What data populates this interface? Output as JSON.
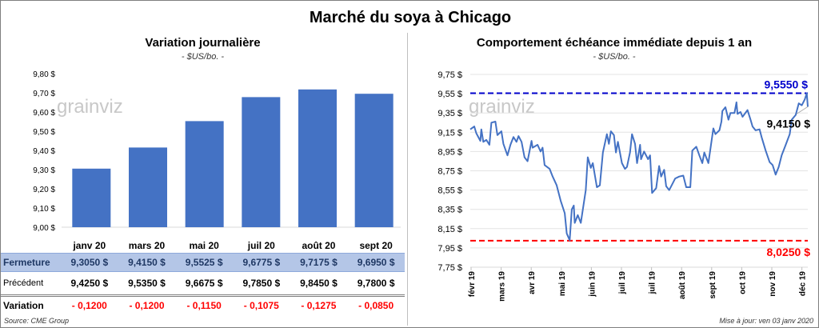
{
  "title": "Marché du soya à Chicago",
  "logo_text": "grainviz",
  "left": {
    "subtitle": "Variation journalière",
    "unit": "- $US/bo. -"
  },
  "right": {
    "subtitle": "Comportement  échéance immédiate depuis 1 an",
    "unit": "- $US/bo. -"
  },
  "table": {
    "columns": [
      "janv 20",
      "mars 20",
      "mai 20",
      "juil 20",
      "août 20",
      "sept 20"
    ],
    "rows": [
      {
        "label": "Fermeture",
        "values": [
          "9,3050  $",
          "9,4150  $",
          "9,5525  $",
          "9,6775  $",
          "9,7175  $",
          "9,6950  $"
        ]
      },
      {
        "label": "Précédent",
        "values": [
          "9,4250  $",
          "9,5350  $",
          "9,6675  $",
          "9,7850  $",
          "9,8450  $",
          "9,7800  $"
        ]
      },
      {
        "label": "Variation",
        "values": [
          "- 0,1200",
          "- 0,1200",
          "- 0,1150",
          "- 0,1075",
          "- 0,1275",
          "- 0,0850"
        ]
      }
    ]
  },
  "source": "Source: CME Group",
  "updated": "Mise à jour: ven 03 janv 2020",
  "colors": {
    "bar": "#4472c4",
    "line": "#4472c4",
    "high": "#0000cc",
    "low": "#ff0000",
    "table_highlight": "#b4c6e7",
    "variation": "#ff0000"
  },
  "chart_data": [
    {
      "type": "bar",
      "title": "Variation journalière",
      "ylabel": "- $US/bo. -",
      "categories": [
        "janv 20",
        "mars 20",
        "mai 20",
        "juil 20",
        "août 20",
        "sept 20"
      ],
      "values": [
        9.305,
        9.415,
        9.5525,
        9.6775,
        9.7175,
        9.695
      ],
      "ylim": [
        9.0,
        9.8
      ],
      "yticks": [
        "9,00 $",
        "9,10 $",
        "9,20 $",
        "9,30 $",
        "9,40 $",
        "9,50 $",
        "9,60 $",
        "9,70 $",
        "9,80 $"
      ],
      "grid": false
    },
    {
      "type": "line",
      "title": "Comportement  échéance immédiate depuis 1 an",
      "ylabel": "- $US/bo. -",
      "ylim": [
        7.75,
        9.75
      ],
      "yticks": [
        "7,75 $",
        "7,95 $",
        "8,15 $",
        "8,35 $",
        "8,55 $",
        "8,75 $",
        "8,95 $",
        "9,15 $",
        "9,35 $",
        "9,55 $",
        "9,75 $"
      ],
      "xticks": [
        "févr 19",
        "mars 19",
        "avr 19",
        "mai 19",
        "juin 19",
        "juil 19",
        "juil 19",
        "août 19",
        "sept 19",
        "oct 19",
        "nov 19",
        "déc 19"
      ],
      "grid": true,
      "high": {
        "value": 9.555,
        "label": "9,5550 $"
      },
      "low": {
        "value": 8.025,
        "label": "8,0250 $"
      },
      "last": {
        "value": 9.415,
        "label": "9,4150 $"
      },
      "series": [
        {
          "x": [
            "2019-02-01",
            "2019-02-05",
            "2019-02-07",
            "2019-02-11",
            "2019-02-12",
            "2019-02-14",
            "2019-02-17",
            "2019-02-20",
            "2019-02-22",
            "2019-02-26",
            "2019-02-28",
            "2019-03-04",
            "2019-03-06",
            "2019-03-10",
            "2019-03-13",
            "2019-03-16",
            "2019-03-19",
            "2019-03-21",
            "2019-03-24",
            "2019-03-27",
            "2019-03-30",
            "2019-04-03",
            "2019-04-04",
            "2019-04-09",
            "2019-04-12",
            "2019-04-14",
            "2019-04-16",
            "2019-04-21",
            "2019-04-24",
            "2019-04-28",
            "2019-05-02",
            "2019-05-06",
            "2019-05-08",
            "2019-05-11",
            "2019-05-13",
            "2019-05-15",
            "2019-05-16",
            "2019-05-19",
            "2019-05-22",
            "2019-05-27",
            "2019-05-29",
            "2019-06-01",
            "2019-06-03",
            "2019-06-07",
            "2019-06-10",
            "2019-06-13",
            "2019-06-17",
            "2019-06-19",
            "2019-06-21",
            "2019-06-24",
            "2019-06-26",
            "2019-06-28",
            "2019-07-02",
            "2019-07-05",
            "2019-07-07",
            "2019-07-10",
            "2019-07-12",
            "2019-07-15",
            "2019-07-17",
            "2019-07-20",
            "2019-07-21",
            "2019-07-24",
            "2019-07-28",
            "2019-07-30",
            "2019-08-01",
            "2019-08-05",
            "2019-08-08",
            "2019-08-10",
            "2019-08-13",
            "2019-08-15",
            "2019-08-18",
            "2019-08-20",
            "2019-08-24",
            "2019-08-28",
            "2019-09-01",
            "2019-09-04",
            "2019-09-08",
            "2019-09-10",
            "2019-09-14",
            "2019-09-17",
            "2019-09-20",
            "2019-09-22",
            "2019-09-26",
            "2019-10-01",
            "2019-10-03",
            "2019-10-07",
            "2019-10-09",
            "2019-10-10",
            "2019-10-13",
            "2019-10-16",
            "2019-10-18",
            "2019-10-22",
            "2019-10-24",
            "2019-10-25",
            "2019-10-28",
            "2019-10-30",
            "2019-11-04",
            "2019-11-07",
            "2019-11-09",
            "2019-11-12",
            "2019-11-16",
            "2019-11-18",
            "2019-11-22",
            "2019-11-26",
            "2019-11-29",
            "2019-12-02",
            "2019-12-05",
            "2019-12-08",
            "2019-12-12",
            "2019-12-16",
            "2019-12-18",
            "2019-12-22",
            "2019-12-25",
            "2019-12-28",
            "2019-12-31",
            "2020-01-02",
            "2020-01-03"
          ],
          "y": [
            9.18,
            9.21,
            9.14,
            9.06,
            9.18,
            9.05,
            9.07,
            9.02,
            9.25,
            9.26,
            9.12,
            9.16,
            9.03,
            8.91,
            9.02,
            9.1,
            9.05,
            9.11,
            9.05,
            8.89,
            8.85,
            9.06,
            8.99,
            9.02,
            8.95,
            8.99,
            8.81,
            8.77,
            8.69,
            8.6,
            8.44,
            8.31,
            8.1,
            8.03,
            8.35,
            8.39,
            8.21,
            8.29,
            8.21,
            8.55,
            8.89,
            8.78,
            8.83,
            8.58,
            8.6,
            8.94,
            9.13,
            9.03,
            9.16,
            9.12,
            8.94,
            9.05,
            8.83,
            8.77,
            8.79,
            8.94,
            9.13,
            9.03,
            8.83,
            9.02,
            8.87,
            8.95,
            8.87,
            8.91,
            8.52,
            8.57,
            8.8,
            8.69,
            8.76,
            8.59,
            8.55,
            8.59,
            8.67,
            8.69,
            8.7,
            8.58,
            8.58,
            8.96,
            9.0,
            8.91,
            8.83,
            8.94,
            8.83,
            9.19,
            9.13,
            9.17,
            9.26,
            9.37,
            9.41,
            9.28,
            9.35,
            9.35,
            9.46,
            9.34,
            9.36,
            9.31,
            9.38,
            9.28,
            9.21,
            9.17,
            9.18,
            9.1,
            8.96,
            8.84,
            8.81,
            8.71,
            8.79,
            8.91,
            9.02,
            9.13,
            9.28,
            9.33,
            9.45,
            9.43,
            9.49,
            9.555,
            9.415
          ]
        }
      ]
    }
  ]
}
